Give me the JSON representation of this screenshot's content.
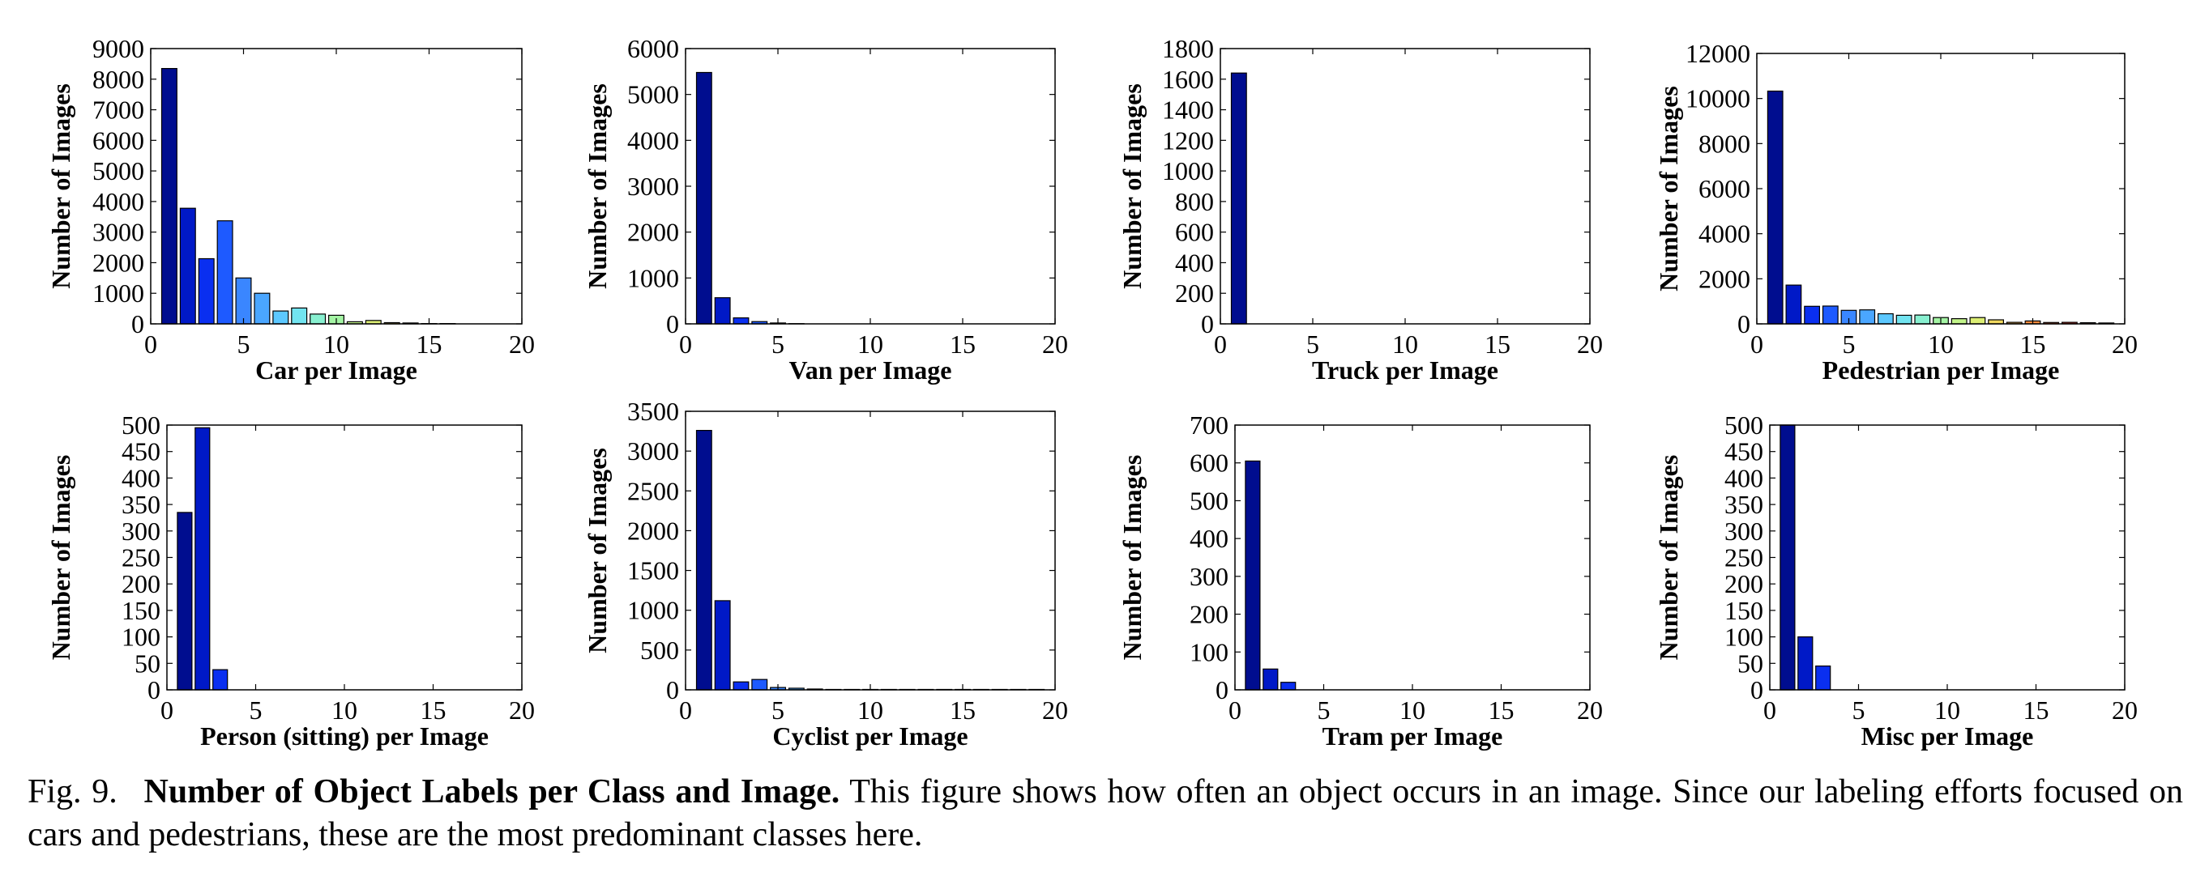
{
  "caption": {
    "prefix": "Fig. 9.",
    "bold": "Number of Object Labels per Class and Image.",
    "text": " This figure shows how often an object occurs in an image. Since our labeling efforts focused on cars and pedestrians, these are the most predominant classes here."
  },
  "chart_data": [
    {
      "type": "bar",
      "xlabel": "Car per Image",
      "ylabel": "Number of Images",
      "xlim": [
        0,
        20
      ],
      "ylim": [
        0,
        9000
      ],
      "xticks": [
        0,
        5,
        10,
        15,
        20
      ],
      "yticks": [
        0,
        1000,
        2000,
        3000,
        4000,
        5000,
        6000,
        7000,
        8000,
        9000
      ],
      "x": [
        1,
        2,
        3,
        4,
        5,
        6,
        7,
        8,
        9,
        10,
        11,
        12,
        13,
        14,
        15,
        16,
        17,
        18,
        19
      ],
      "values": [
        8350,
        3780,
        2130,
        3370,
        1500,
        1000,
        420,
        520,
        320,
        280,
        70,
        110,
        40,
        30,
        10,
        10,
        0,
        0,
        0
      ],
      "colors": [
        "#000d8f",
        "#0019c7",
        "#0a2ff0",
        "#1e5aff",
        "#3a86ff",
        "#4aa6ff",
        "#5cc8ff",
        "#72e4f0",
        "#88f0d0",
        "#a4f4a4",
        "#c2f48a",
        "#dcee74",
        "#f0d860",
        "#f8b44c",
        "#f48a3c",
        "#e85a2c",
        "#d43020",
        "#b81414",
        "#8c0808"
      ]
    },
    {
      "type": "bar",
      "xlabel": "Van per Image",
      "ylabel": "Number of Images",
      "xlim": [
        0,
        20
      ],
      "ylim": [
        0,
        6000
      ],
      "xticks": [
        0,
        5,
        10,
        15,
        20
      ],
      "yticks": [
        0,
        1000,
        2000,
        3000,
        4000,
        5000,
        6000
      ],
      "x": [
        1,
        2,
        3,
        4,
        5,
        6
      ],
      "values": [
        5480,
        570,
        130,
        50,
        20,
        5
      ],
      "colors": [
        "#000d8f",
        "#0019c7",
        "#0a2ff0",
        "#1e5aff",
        "#3a86ff",
        "#4aa6ff"
      ]
    },
    {
      "type": "bar",
      "xlabel": "Truck per Image",
      "ylabel": "Number of Images",
      "xlim": [
        0,
        20
      ],
      "ylim": [
        0,
        1800
      ],
      "xticks": [
        0,
        5,
        10,
        15,
        20
      ],
      "yticks": [
        0,
        200,
        400,
        600,
        800,
        1000,
        1200,
        1400,
        1600,
        1800
      ],
      "x": [
        1
      ],
      "values": [
        1640
      ],
      "colors": [
        "#000d8f"
      ]
    },
    {
      "type": "bar",
      "xlabel": "Pedestrian per Image",
      "ylabel": "Number of Images",
      "xlim": [
        0,
        20
      ],
      "ylim": [
        0,
        12000
      ],
      "xticks": [
        0,
        5,
        10,
        15,
        20
      ],
      "yticks": [
        0,
        2000,
        4000,
        6000,
        8000,
        10000,
        12000
      ],
      "x": [
        1,
        2,
        3,
        4,
        5,
        6,
        7,
        8,
        9,
        10,
        11,
        12,
        13,
        14,
        15,
        16,
        17,
        18,
        19
      ],
      "values": [
        10330,
        1720,
        780,
        790,
        600,
        620,
        450,
        380,
        390,
        280,
        230,
        280,
        180,
        70,
        130,
        60,
        70,
        50,
        40
      ],
      "colors": [
        "#000d8f",
        "#0019c7",
        "#0a2ff0",
        "#1e5aff",
        "#3a86ff",
        "#4aa6ff",
        "#5cc8ff",
        "#72e4f0",
        "#88f0d0",
        "#a4f4a4",
        "#c2f48a",
        "#dcee74",
        "#f0d860",
        "#f8b44c",
        "#f48a3c",
        "#e85a2c",
        "#d43020",
        "#b81414",
        "#8c0808"
      ]
    },
    {
      "type": "bar",
      "xlabel": "Person (sitting) per Image",
      "ylabel": "Number of Images",
      "xlim": [
        0,
        20
      ],
      "ylim": [
        0,
        500
      ],
      "xticks": [
        0,
        5,
        10,
        15,
        20
      ],
      "yticks": [
        0,
        50,
        100,
        150,
        200,
        250,
        300,
        350,
        400,
        450,
        500
      ],
      "x": [
        1,
        2,
        3
      ],
      "values": [
        335,
        495,
        38
      ],
      "colors": [
        "#000d8f",
        "#0019c7",
        "#0a2ff0"
      ]
    },
    {
      "type": "bar",
      "xlabel": "Cyclist per Image",
      "ylabel": "Number of Images",
      "xlim": [
        0,
        20
      ],
      "ylim": [
        0,
        3500
      ],
      "xticks": [
        0,
        5,
        10,
        15,
        20
      ],
      "yticks": [
        0,
        500,
        1000,
        1500,
        2000,
        2500,
        3000,
        3500
      ],
      "x": [
        1,
        2,
        3,
        4,
        5,
        6,
        7,
        8,
        9,
        10,
        11,
        12,
        13,
        14,
        15,
        16,
        17,
        18,
        19
      ],
      "values": [
        3260,
        1120,
        100,
        130,
        30,
        20,
        10,
        5,
        5,
        5,
        5,
        5,
        5,
        5,
        5,
        5,
        5,
        5,
        5
      ],
      "colors": [
        "#000d8f",
        "#0019c7",
        "#0a2ff0",
        "#1e5aff",
        "#3a86ff",
        "#4aa6ff",
        "#5cc8ff",
        "#72e4f0",
        "#88f0d0",
        "#a4f4a4",
        "#c2f48a",
        "#dcee74",
        "#f0d860",
        "#f8b44c",
        "#f48a3c",
        "#e85a2c",
        "#d43020",
        "#b81414",
        "#8c0808"
      ]
    },
    {
      "type": "bar",
      "xlabel": "Tram per Image",
      "ylabel": "Number of Images",
      "xlim": [
        0,
        20
      ],
      "ylim": [
        0,
        700
      ],
      "xticks": [
        0,
        5,
        10,
        15,
        20
      ],
      "yticks": [
        0,
        100,
        200,
        300,
        400,
        500,
        600,
        700
      ],
      "x": [
        1,
        2,
        3
      ],
      "values": [
        605,
        55,
        20
      ],
      "colors": [
        "#000d8f",
        "#0019c7",
        "#0a2ff0"
      ]
    },
    {
      "type": "bar",
      "xlabel": "Misc per Image",
      "ylabel": "Number of Images",
      "xlim": [
        0,
        20
      ],
      "ylim": [
        0,
        500
      ],
      "xticks": [
        0,
        5,
        10,
        15,
        20
      ],
      "yticks": [
        0,
        50,
        100,
        150,
        200,
        250,
        300,
        350,
        400,
        450,
        500
      ],
      "x": [
        1,
        2,
        3
      ],
      "values": [
        510,
        100,
        45
      ],
      "colors": [
        "#000d8f",
        "#0019c7",
        "#0a2ff0"
      ]
    }
  ]
}
